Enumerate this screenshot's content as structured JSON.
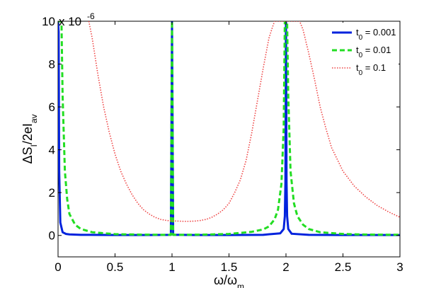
{
  "chart_data": {
    "type": "line",
    "title": "",
    "xlabel": "ω/ω_m",
    "ylabel": "ΔS_I/2eI_av",
    "y_scale_multiplier": "x 10^-6",
    "xlim": [
      0,
      3
    ],
    "ylim": [
      -1,
      10
    ],
    "xticks": [
      0,
      0.5,
      1,
      1.5,
      2,
      2.5,
      3
    ],
    "xtick_labels": [
      "0",
      "0.5",
      "1",
      "1.5",
      "2",
      "2.5",
      "3"
    ],
    "yticks": [
      0,
      2,
      4,
      6,
      8,
      10
    ],
    "ytick_labels": [
      "0",
      "2",
      "4",
      "6",
      "8",
      "10"
    ],
    "grid": false,
    "legend_position": "top-right",
    "series": [
      {
        "name": "t_0 = 0.001",
        "color": "#0022dd",
        "style": "solid",
        "x": [
          0,
          0.005,
          0.01,
          0.02,
          0.04,
          0.07,
          0.1,
          0.2,
          0.5,
          0.8,
          0.99,
          1.0,
          1.01,
          1.2,
          1.5,
          1.8,
          1.95,
          1.98,
          1.99,
          1.995,
          2.0,
          2.005,
          2.01,
          2.02,
          2.05,
          2.2,
          2.5,
          3.0
        ],
        "y": [
          10,
          9.5,
          3.0,
          0.6,
          0.15,
          0.07,
          0.05,
          0.03,
          0.02,
          0.02,
          0.03,
          10,
          0.03,
          0.02,
          0.02,
          0.03,
          0.1,
          0.3,
          0.9,
          2.5,
          10,
          2.5,
          0.9,
          0.3,
          0.08,
          0.03,
          0.02,
          0.02
        ]
      },
      {
        "name": "t_0 = 0.01",
        "color": "#22dd22",
        "style": "dashed",
        "x": [
          0,
          0.01,
          0.02,
          0.03,
          0.04,
          0.06,
          0.08,
          0.1,
          0.15,
          0.2,
          0.3,
          0.5,
          0.7,
          0.9,
          0.99,
          1.0,
          1.01,
          1.1,
          1.3,
          1.5,
          1.7,
          1.8,
          1.85,
          1.9,
          1.93,
          1.96,
          1.98,
          1.99,
          2.0,
          2.01,
          2.02,
          2.04,
          2.07,
          2.1,
          2.15,
          2.2,
          2.3,
          2.5,
          2.7,
          3.0
        ],
        "y": [
          10,
          10,
          10,
          10,
          6.5,
          3.0,
          1.7,
          1.0,
          0.5,
          0.3,
          0.15,
          0.06,
          0.04,
          0.03,
          0.03,
          10,
          0.03,
          0.03,
          0.04,
          0.07,
          0.17,
          0.28,
          0.42,
          0.75,
          1.2,
          2.4,
          5.0,
          10,
          10,
          10,
          6.5,
          3.0,
          1.5,
          0.9,
          0.5,
          0.3,
          0.15,
          0.07,
          0.04,
          0.03
        ]
      },
      {
        "name": "t_0 = 0.1",
        "color": "#ee4444",
        "style": "dotted",
        "x": [
          0.27,
          0.3,
          0.35,
          0.4,
          0.45,
          0.5,
          0.55,
          0.6,
          0.65,
          0.7,
          0.75,
          0.8,
          0.85,
          0.9,
          0.95,
          1.0,
          1.05,
          1.1,
          1.15,
          1.2,
          1.25,
          1.3,
          1.35,
          1.4,
          1.45,
          1.5,
          1.55,
          1.6,
          1.65,
          1.7,
          1.75,
          1.8,
          1.85,
          1.88,
          1.9,
          1.92,
          2.1,
          2.12,
          2.15,
          2.2,
          2.25,
          2.3,
          2.35,
          2.4,
          2.5,
          2.6,
          2.7,
          2.8,
          2.9,
          3.0
        ],
        "y": [
          10,
          9.2,
          7.5,
          6.0,
          4.8,
          3.8,
          3.0,
          2.4,
          1.9,
          1.5,
          1.2,
          1.0,
          0.85,
          0.75,
          0.7,
          0.68,
          0.67,
          0.66,
          0.66,
          0.67,
          0.7,
          0.75,
          0.85,
          1.0,
          1.2,
          1.5,
          2.0,
          2.6,
          3.5,
          4.8,
          6.3,
          7.8,
          9.2,
          9.7,
          10,
          10,
          10,
          10,
          9.6,
          8.5,
          7.3,
          6.0,
          5.0,
          4.1,
          3.0,
          2.3,
          1.8,
          1.4,
          1.1,
          0.85
        ]
      }
    ]
  }
}
